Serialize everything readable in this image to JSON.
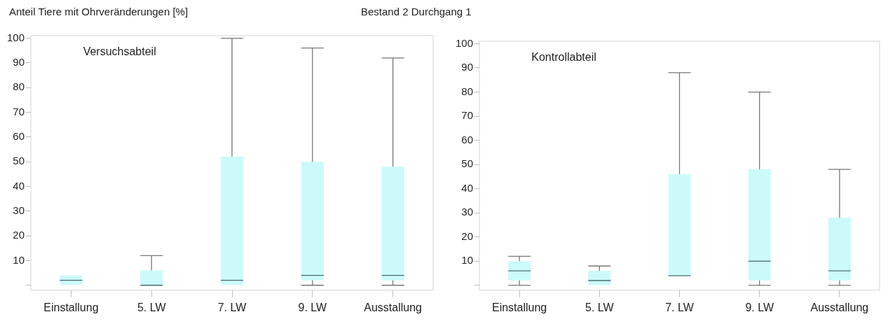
{
  "chart_data": [
    {
      "type": "box",
      "title": "Bestand 2 Durchgang 1",
      "ylabel": "Anteil Tiere mit Ohrveränderungen [%]",
      "subtitle": "Versuchsabteil",
      "categories": [
        "Einstallung",
        "5. LW",
        "7. LW",
        "9. LW",
        "Ausstallung"
      ],
      "color": "#ccfafa",
      "ylim": [
        -2,
        101
      ],
      "yticks": [
        {
          "value": 0,
          "label": null
        },
        10,
        20,
        30,
        40,
        50,
        60,
        70,
        80,
        90,
        100
      ],
      "grid": false,
      "legend": false,
      "boxes": [
        {
          "low": 0,
          "q1": 0,
          "median": 2,
          "q3": 4,
          "high": 4
        },
        {
          "low": 0,
          "q1": 0,
          "median": 0,
          "q3": 6,
          "high": 12
        },
        {
          "low": 0,
          "q1": 0,
          "median": 2,
          "q3": 52,
          "high": 100
        },
        {
          "low": 0,
          "q1": 2,
          "median": 4,
          "q3": 50,
          "high": 96
        },
        {
          "low": 0,
          "q1": 2,
          "median": 4,
          "q3": 48,
          "high": 92
        }
      ]
    },
    {
      "type": "box",
      "subtitle": "Kontrollabteil",
      "categories": [
        "Einstallung",
        "5. LW",
        "7. LW",
        "9. LW",
        "Ausstallung"
      ],
      "color": "#ccfafa",
      "ylim": [
        -2,
        101
      ],
      "yticks": [
        {
          "value": 0,
          "label": null
        },
        10,
        20,
        30,
        40,
        50,
        60,
        70,
        80,
        90,
        100
      ],
      "grid": false,
      "legend": false,
      "boxes": [
        {
          "low": 0,
          "q1": 2,
          "median": 6,
          "q3": 10,
          "high": 12
        },
        {
          "low": 0,
          "q1": 0,
          "median": 2,
          "q3": 6,
          "high": 8
        },
        {
          "low": 4,
          "q1": 4,
          "median": 4,
          "q3": 46,
          "high": 88
        },
        {
          "low": 0,
          "q1": 2,
          "median": 10,
          "q3": 48,
          "high": 80
        },
        {
          "low": 0,
          "q1": 2,
          "median": 6,
          "q3": 28,
          "high": 48
        }
      ]
    }
  ]
}
